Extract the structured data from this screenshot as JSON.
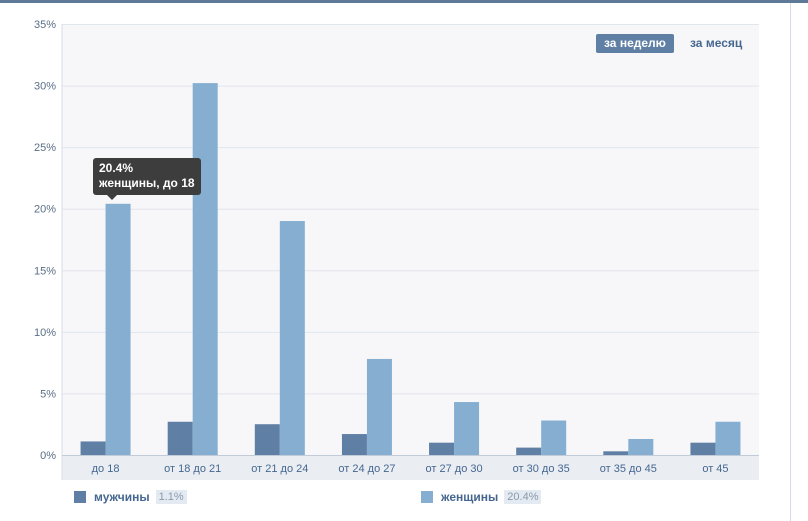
{
  "periods": {
    "week": "за неделю",
    "month": "за месяц"
  },
  "tooltip": {
    "value": "20.4%",
    "label": "женщины, до 18"
  },
  "legend": [
    {
      "name": "мужчины",
      "value": "1.1%",
      "color": "#5f7fa5"
    },
    {
      "name": "женщины",
      "value": "20.4%",
      "color": "#85aed1"
    }
  ],
  "chart_data": {
    "type": "bar",
    "categories": [
      "до 18",
      "от 18 до 21",
      "от 21 до 24",
      "от 24 до 27",
      "от 27 до 30",
      "от 30 до 35",
      "от 35 до 45",
      "от 45"
    ],
    "series": [
      {
        "name": "мужчины",
        "color": "#5f7fa5",
        "values": [
          1.1,
          2.7,
          2.5,
          1.7,
          1.0,
          0.6,
          0.3,
          1.0
        ]
      },
      {
        "name": "женщины",
        "color": "#85aed1",
        "values": [
          20.4,
          30.2,
          19.0,
          7.8,
          4.3,
          2.8,
          1.3,
          2.7
        ]
      }
    ],
    "yticks": [
      "0%",
      "5%",
      "10%",
      "15%",
      "20%",
      "25%",
      "30%",
      "35%"
    ],
    "ylim": [
      0,
      35
    ],
    "grid": true
  }
}
